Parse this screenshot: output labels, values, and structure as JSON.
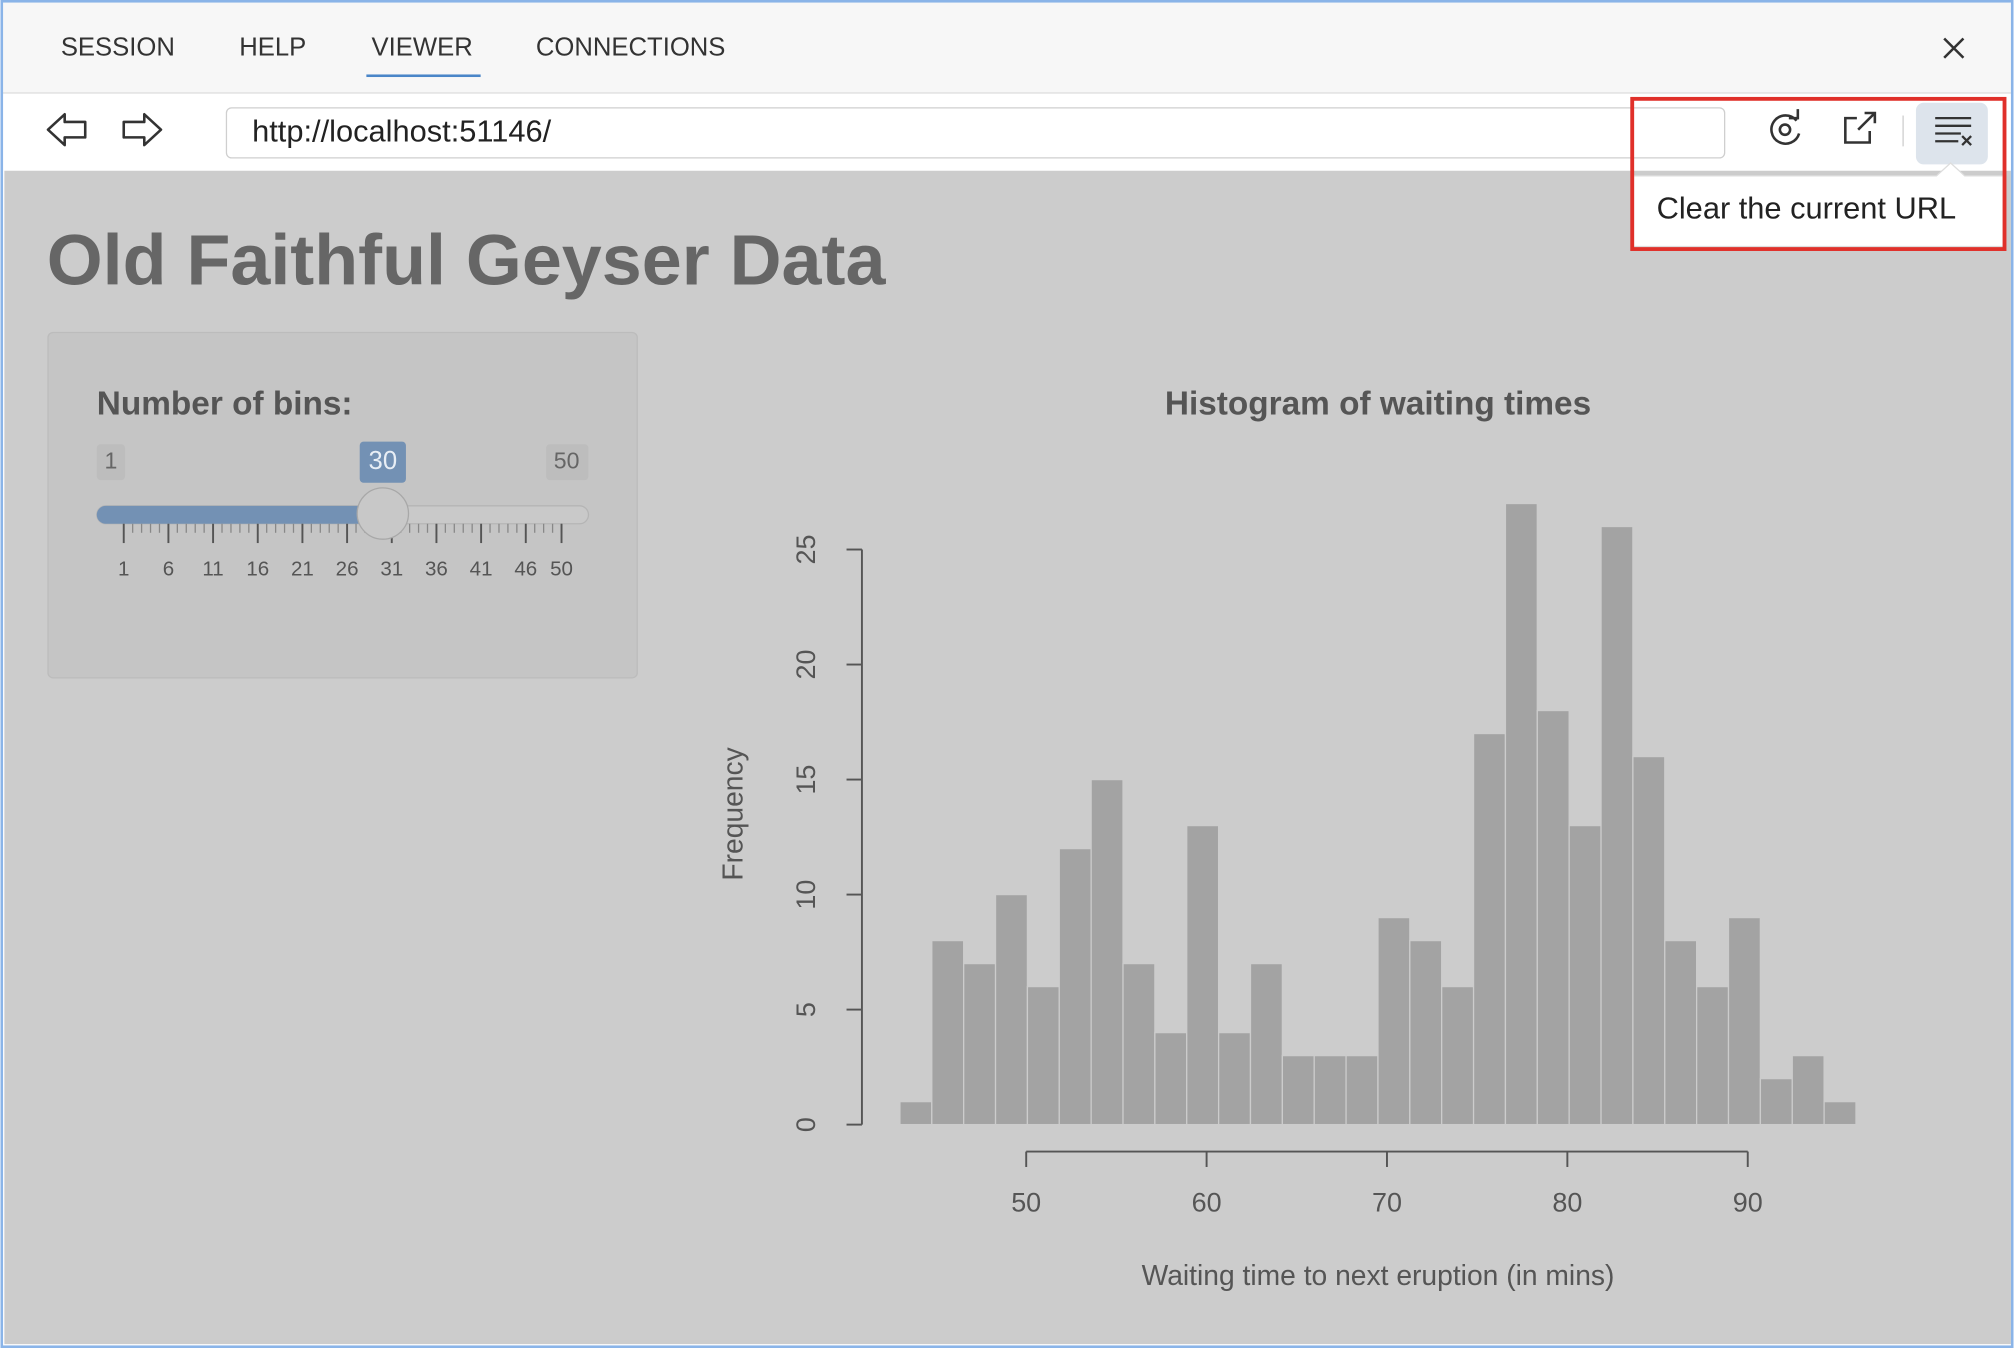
{
  "tabs": [
    "SESSION",
    "HELP",
    "VIEWER",
    "CONNECTIONS"
  ],
  "address_bar": {
    "url": "http://localhost:51146/"
  },
  "tooltip": "Clear the current URL",
  "app": {
    "title": "Old Faithful Geyser Data",
    "slider": {
      "label": "Number of bins:",
      "min": 1,
      "max": 50,
      "value": 30,
      "ticks": [
        1,
        6,
        11,
        16,
        21,
        26,
        31,
        36,
        41,
        46,
        50
      ]
    }
  },
  "chart_data": {
    "type": "histogram",
    "title": "Histogram of waiting times",
    "x_label": "Waiting time to next eruption (in mins)",
    "y_label": "Frequency",
    "bins": [
      43,
      44.767,
      46.533,
      48.3,
      50.067,
      51.833,
      53.6,
      55.367,
      57.133,
      58.9,
      60.667,
      62.433,
      64.2,
      65.967,
      67.733,
      69.5,
      71.267,
      73.033,
      74.8,
      76.567,
      78.333,
      80.1,
      81.867,
      83.633,
      85.4,
      87.167,
      88.933,
      90.7,
      92.467,
      94.233,
      96
    ],
    "values": [
      1,
      8,
      7,
      10,
      6,
      12,
      15,
      7,
      4,
      13,
      4,
      7,
      3,
      3,
      3,
      9,
      8,
      6,
      17,
      27,
      18,
      13,
      26,
      16,
      8,
      6,
      9,
      2,
      3,
      1
    ],
    "color": "#a3a3a3",
    "xlim": [
      43,
      96
    ],
    "ylim": [
      0,
      27
    ],
    "xticks": [
      50,
      60,
      70,
      80,
      90
    ],
    "yticks": [
      0,
      5,
      10,
      15,
      20,
      25
    ]
  }
}
